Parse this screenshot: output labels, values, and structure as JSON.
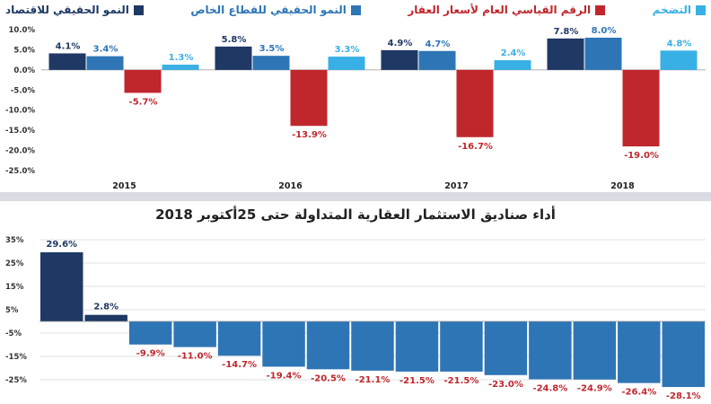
{
  "chart_data": [
    {
      "type": "bar",
      "categories": [
        "2015",
        "2016",
        "2017",
        "2018"
      ],
      "series": [
        {
          "name": "النمو الحقيقي للاقتصاد",
          "color": "#1f3864",
          "values": [
            4.1,
            5.8,
            4.9,
            7.8
          ]
        },
        {
          "name": "النمو الحقيقي للقطاع الخاص",
          "color": "#2e75b6",
          "values": [
            3.4,
            3.5,
            4.7,
            8.0
          ]
        },
        {
          "name": "الرقم القياسي العام لأسعار العقار",
          "color": "#c0272d",
          "values": [
            -5.7,
            -13.9,
            -16.7,
            -19.0
          ]
        },
        {
          "name": "التضخم",
          "color": "#39b0e5",
          "values": [
            1.3,
            3.3,
            2.4,
            4.8
          ]
        }
      ],
      "value_labels": [
        [
          "4.1%",
          "5.8%",
          "4.9%",
          "7.8%"
        ],
        [
          "3.4%",
          "3.5%",
          "4.7%",
          "8.0%"
        ],
        [
          "-5.7%",
          "-13.9%",
          "-16.7%",
          "-19.0%"
        ],
        [
          "1.3%",
          "3.3%",
          "2.4%",
          "4.8%"
        ]
      ],
      "ylim": [
        -25,
        10
      ],
      "yticks": [
        10,
        5,
        0,
        -5,
        -10,
        -15,
        -20,
        -25
      ],
      "ytick_labels": [
        "10.0%",
        "5.0%",
        "0.0%",
        "-5.0%",
        "-10.0%",
        "-15.0%",
        "-20.0%",
        "-25.0%"
      ],
      "legend_position": "top",
      "grid": false
    },
    {
      "type": "bar",
      "title": "أداء صناديق الاستثمار العقارية المتداولة حتى 25أكتوبر 2018",
      "values": [
        29.6,
        2.8,
        -9.9,
        -11.0,
        -14.7,
        -19.4,
        -20.5,
        -21.1,
        -21.5,
        -21.5,
        -23.0,
        -24.8,
        -24.9,
        -26.4,
        -28.1
      ],
      "value_labels": [
        "29.6%",
        "2.8%",
        "-9.9%",
        "-11.0%",
        "-14.7%",
        "-19.4%",
        "-20.5%",
        "-21.1%",
        "-21.5%",
        "-21.5%",
        "-23.0%",
        "-24.8%",
        "-24.9%",
        "-26.4%",
        "-28.1%"
      ],
      "colors": {
        "positive": "#1f3864",
        "negative": "#2e75b6",
        "positive_label": "#1f3864",
        "negative_label": "#c0272d"
      },
      "yticks": [
        35,
        25,
        15,
        5,
        -5,
        -15,
        -25
      ],
      "ytick_labels": [
        "35%",
        "25%",
        "15%",
        "5%",
        "-5%",
        "-15%",
        "-25%"
      ],
      "ylim": [
        -35,
        35
      ],
      "grid": true
    }
  ]
}
